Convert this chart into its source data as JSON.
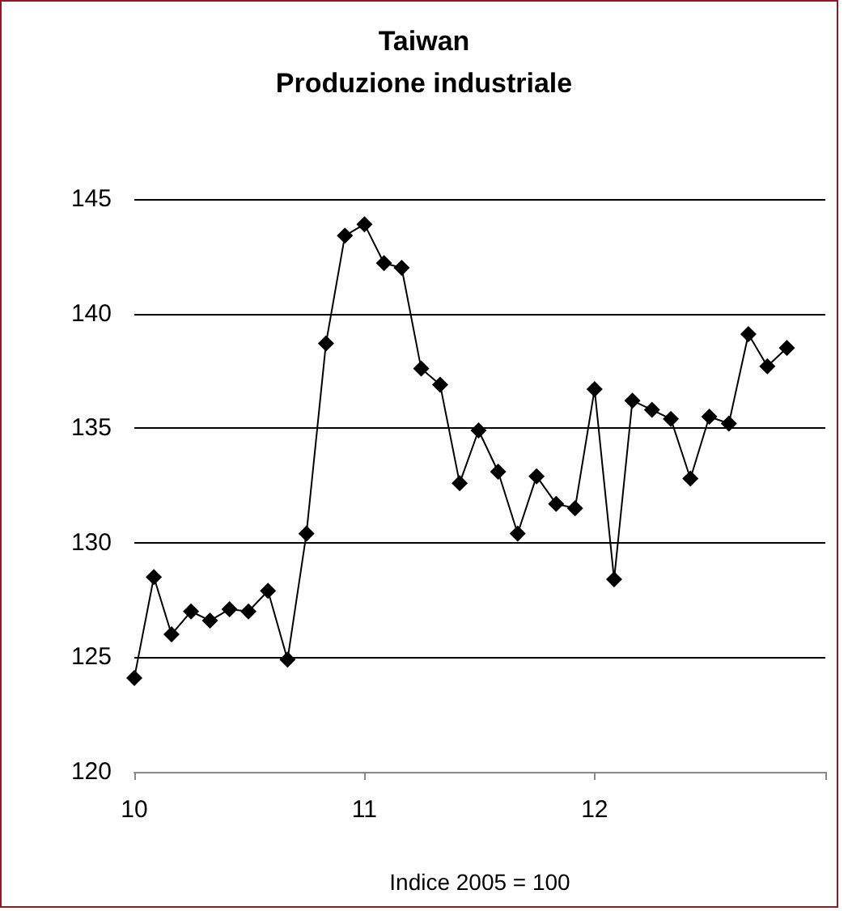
{
  "chart_data": {
    "type": "line",
    "title": "Taiwan",
    "subtitle": "Produzione industriale",
    "xlabel": "Indice 2005 = 100",
    "x": [
      "2010-01",
      "2010-02",
      "2010-03",
      "2010-04",
      "2010-05",
      "2010-06",
      "2010-07",
      "2010-08",
      "2010-09",
      "2010-10",
      "2010-11",
      "2010-12",
      "2011-01",
      "2011-02",
      "2011-03",
      "2011-04",
      "2011-05",
      "2011-06",
      "2011-07",
      "2011-08",
      "2011-09",
      "2011-10",
      "2011-11",
      "2011-12",
      "2012-01",
      "2012-02",
      "2012-03",
      "2012-04",
      "2012-05",
      "2012-06",
      "2012-07",
      "2012-08",
      "2012-09",
      "2012-10",
      "2012-11"
    ],
    "series": [
      {
        "color": "#000000",
        "values": [
          124.1,
          128.5,
          126.0,
          127.0,
          126.6,
          127.1,
          127.0,
          127.9,
          124.9,
          130.4,
          138.7,
          143.4,
          143.9,
          142.2,
          142.0,
          137.6,
          136.9,
          132.6,
          134.9,
          133.1,
          130.4,
          132.9,
          131.7,
          131.5,
          136.7,
          128.4,
          136.2,
          135.8,
          135.4,
          132.8,
          135.5,
          135.2,
          139.1,
          137.7,
          138.5
        ]
      }
    ],
    "xlim": [
      "2010-01",
      "2013-01"
    ],
    "xticks": [
      {
        "value": "2010-01",
        "label": "10"
      },
      {
        "value": "2011-01",
        "label": "11"
      },
      {
        "value": "2012-01",
        "label": "12"
      },
      {
        "value": "2013-01",
        "label": null
      }
    ],
    "ylim": [
      120,
      145
    ],
    "yticks": [
      120,
      125,
      130,
      135,
      140,
      145
    ],
    "grid": "y",
    "marker": "diamond",
    "line_style": "solid"
  }
}
